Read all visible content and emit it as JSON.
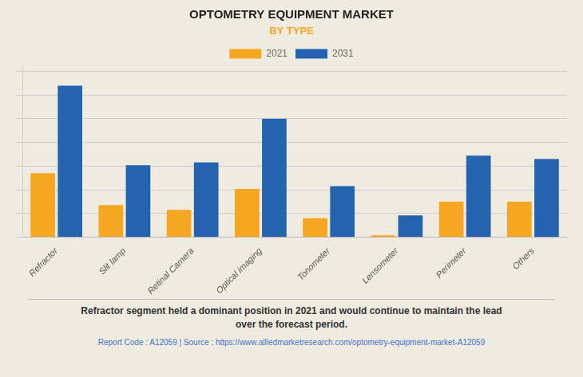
{
  "chart_data": {
    "type": "bar",
    "title": "OPTOMETRY EQUIPMENT MARKET",
    "subtitle": "BY TYPE",
    "categories": [
      "Refractor",
      "Slit lamp",
      "Retinal Camera",
      "Optical imaging",
      "Tonometer",
      "Lensometer",
      "Perimeter",
      "Others"
    ],
    "series": [
      {
        "name": "2021",
        "color": "#F5A623",
        "values": [
          1.35,
          0.68,
          0.58,
          1.02,
          0.4,
          0.04,
          0.75,
          0.75
        ]
      },
      {
        "name": "2031",
        "color": "#2464AE",
        "values": [
          3.2,
          1.52,
          1.58,
          2.5,
          1.08,
          0.46,
          1.72,
          1.65
        ]
      }
    ],
    "ylim": [
      0,
      3.6
    ],
    "yticks": [
      0,
      0.5,
      1,
      1.5,
      2,
      2.5,
      3,
      3.5
    ],
    "grid": true,
    "legend": "top",
    "tick_labels": "x",
    "annotations": [
      "Refractor segment held a dominant position in 2021 and would continue to maintain the lead\nover the forecast period.",
      "Report Code : A12059  |  Source : https://www.alliedmarketresearch.com/optometry-equipment-market-A12059"
    ]
  }
}
